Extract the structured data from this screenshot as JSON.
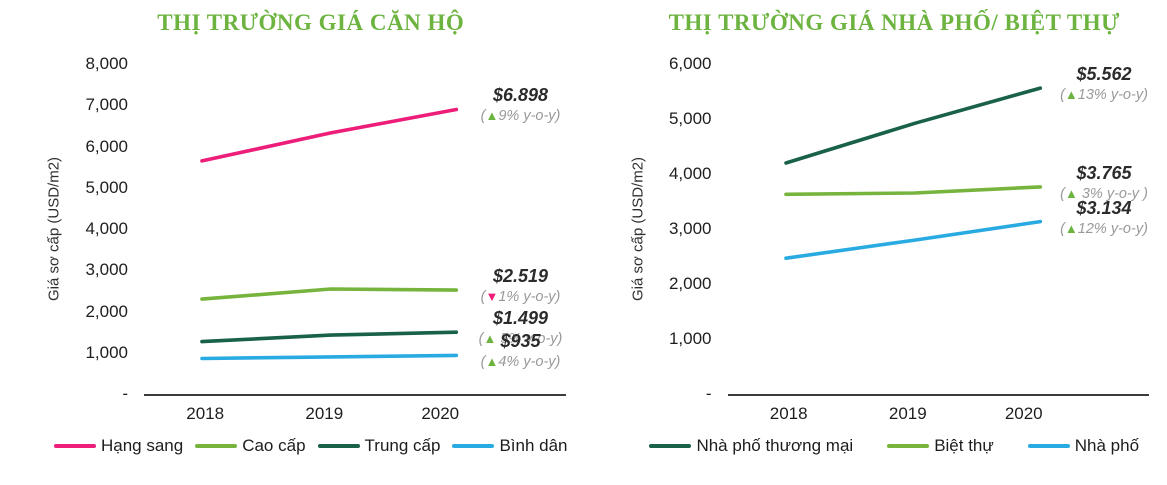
{
  "colors": {
    "title_green": "#6CB33F",
    "up_green": "#6CB33F",
    "down_pink": "#ED1E79",
    "axis_line": "#3C3C3C"
  },
  "chart_data": [
    {
      "type": "line",
      "title": "THỊ TRƯỜNG GIÁ CĂN HỘ",
      "ylabel": "Giá sơ cấp (USD/m2)",
      "xlabel": "",
      "x": [
        2018,
        2019,
        2020
      ],
      "x_tick_labels": [
        "2018",
        "2019",
        "2020"
      ],
      "ylim": [
        0,
        8000
      ],
      "y_tick_labels": [
        "8,000",
        "7,000",
        "6,000",
        "5,000",
        "4,000",
        "3,000",
        "2,000",
        "1,000",
        "-"
      ],
      "grid": false,
      "legend_position": "bottom",
      "series": [
        {
          "name": "Hạng sang",
          "color": "#ED1E79",
          "values": [
            5650,
            6330,
            6898
          ]
        },
        {
          "name": "Cao cấp",
          "color": "#76B43E",
          "values": [
            2300,
            2545,
            2519
          ]
        },
        {
          "name": "Trung cấp",
          "color": "#1A6149",
          "values": [
            1270,
            1428,
            1499
          ]
        },
        {
          "name": "Bình dân",
          "color": "#29ABE2",
          "values": [
            860,
            899,
            935
          ]
        }
      ],
      "annotations": [
        {
          "series": "Hạng sang",
          "price": "$6.898",
          "change": "(▲9% y-o-y)",
          "trend": "up",
          "anchor_value": 6898
        },
        {
          "series": "Cao cấp",
          "price": "$2.519",
          "change": "(▼1% y-o-y)",
          "trend": "down",
          "anchor_value": 2519
        },
        {
          "series": "Trung cấp",
          "price": "$1.499",
          "change": "(▲ 5% y-o-y)",
          "trend": "up",
          "anchor_value": 1499
        },
        {
          "series": "Bình dân",
          "price": "$935",
          "change": "(▲4% y-o-y)",
          "trend": "up",
          "anchor_value": 935
        }
      ]
    },
    {
      "type": "line",
      "title": "THỊ TRƯỜNG GIÁ NHÀ PHỐ/ BIỆT THỰ",
      "ylabel": "Giá sơ cấp (USD/m2)",
      "xlabel": "",
      "x": [
        2018,
        2019,
        2020
      ],
      "x_tick_labels": [
        "2018",
        "2019",
        "2020"
      ],
      "ylim": [
        0,
        6000
      ],
      "y_tick_labels": [
        "6,000",
        "5,000",
        "4,000",
        "3,000",
        "2,000",
        "1,000",
        "-"
      ],
      "grid": false,
      "legend_position": "bottom",
      "series": [
        {
          "name": "Nhà phố thương mại",
          "color": "#1A6149",
          "values": [
            4200,
            4922,
            5562
          ]
        },
        {
          "name": "Biệt thự",
          "color": "#76B43E",
          "values": [
            3630,
            3655,
            3765
          ]
        },
        {
          "name": "Nhà phố",
          "color": "#29ABE2",
          "values": [
            2470,
            2798,
            3134
          ]
        }
      ],
      "annotations": [
        {
          "series": "Nhà phố thương mại",
          "price": "$5.562",
          "change": "(▲13% y-o-y)",
          "trend": "up",
          "anchor_value": 5562
        },
        {
          "series": "Biệt thự",
          "price": "$3.765",
          "change": "(▲ 3% y-o-y )",
          "trend": "up",
          "anchor_value": 3765
        },
        {
          "series": "Nhà phố",
          "price": "$3.134",
          "change": "(▲12% y-o-y)",
          "trend": "up",
          "anchor_value": 3134
        }
      ]
    }
  ]
}
